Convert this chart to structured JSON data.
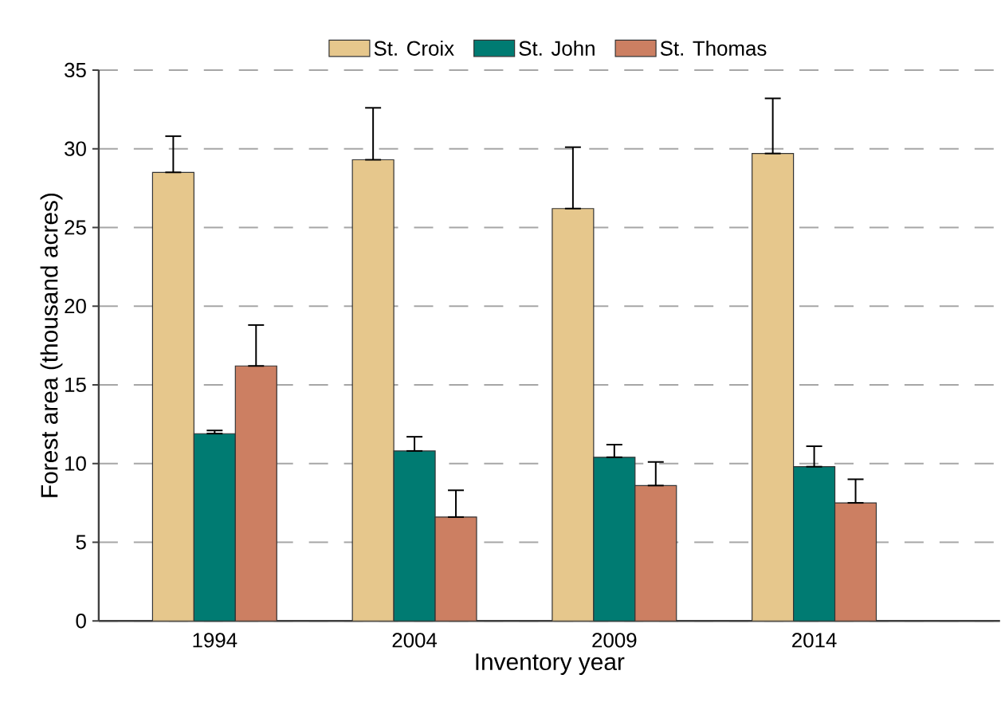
{
  "chart_data": {
    "type": "bar",
    "xlabel": "Inventory year",
    "ylabel": "Forest area (thousand acres)",
    "categories": [
      "1994",
      "2004",
      "2009",
      "2014"
    ],
    "series": [
      {
        "name": "St. Croix",
        "color": "#e6c78c",
        "values": [
          28.5,
          29.3,
          26.2,
          29.7
        ],
        "errors": [
          [
            28.5,
            30.8
          ],
          [
            29.3,
            32.6
          ],
          [
            26.2,
            30.1
          ],
          [
            29.7,
            33.2
          ]
        ]
      },
      {
        "name": "St. John",
        "color": "#007b72",
        "values": [
          11.9,
          10.8,
          10.4,
          9.8
        ],
        "errors": [
          [
            11.9,
            12.1
          ],
          [
            10.8,
            11.7
          ],
          [
            10.4,
            11.2
          ],
          [
            9.8,
            11.1
          ]
        ]
      },
      {
        "name": "St. Thomas",
        "color": "#cc7f62",
        "values": [
          16.2,
          6.6,
          8.6,
          7.5
        ],
        "errors": [
          [
            16.2,
            18.8
          ],
          [
            6.6,
            8.3
          ],
          [
            8.6,
            10.1
          ],
          [
            7.5,
            9.0
          ]
        ]
      }
    ],
    "ylim": [
      0,
      35
    ],
    "yticks": [
      0,
      5,
      10,
      15,
      20,
      25,
      30,
      35
    ],
    "grid": "y",
    "legend": "top"
  }
}
